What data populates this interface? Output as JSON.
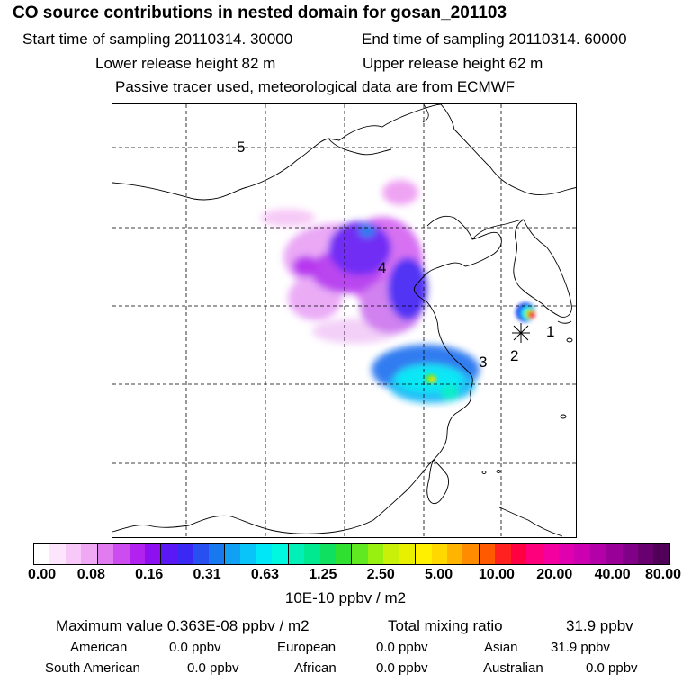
{
  "header": {
    "title": "CO  source contributions in nested domain for gosan_201103",
    "start_label": "Start time of sampling 20110314. 30000",
    "end_label": "End time of sampling 20110314. 60000",
    "lower_label": "Lower release height   82 m",
    "upper_label": "Upper release height   62 m",
    "tracer_label": "Passive tracer used, meteorological data are from ECMWF"
  },
  "map": {
    "region_labels": [
      "1",
      "2",
      "3",
      "4",
      "5"
    ]
  },
  "colorbar": {
    "tick_labels": [
      "0.00",
      "0.08",
      "0.16",
      "0.31",
      "0.63",
      "1.25",
      "2.50",
      "5.00",
      "10.00",
      "20.00",
      "40.00",
      "80.00"
    ],
    "unit": "10E-10 ppbv / m2",
    "colors": [
      "#ffffff",
      "#fde6fd",
      "#f8c8f8",
      "#f0a8f4",
      "#e07cf0",
      "#cc4cef",
      "#b222ee",
      "#8c10f0",
      "#5a18f4",
      "#3a28f4",
      "#2850f0",
      "#1878f0",
      "#10a0f4",
      "#08c4f8",
      "#00e8f8",
      "#00f8e0",
      "#00f0b8",
      "#00e890",
      "#10e060",
      "#30e030",
      "#60e820",
      "#98f010",
      "#c8f008",
      "#e8f000",
      "#fff000",
      "#ffd800",
      "#ffb400",
      "#ff8c00",
      "#ff5a00",
      "#ff2020",
      "#ff0040",
      "#ff007c",
      "#f400a0",
      "#e000b0",
      "#cc00b0",
      "#b400a8",
      "#980098",
      "#800088",
      "#680070",
      "#500058"
    ]
  },
  "stats": {
    "max_label": "Maximum value  0.363E-08 ppbv / m2",
    "total_label": "Total mixing ratio",
    "total_value": "31.9 ppbv"
  },
  "sources": {
    "american_label": "American",
    "american_value": "0.0 ppbv",
    "european_label": "European",
    "european_value": "0.0 ppbv",
    "asian_label": "Asian",
    "asian_value": "31.9 ppbv",
    "south_american_label": "South American",
    "south_american_value": "0.0 ppbv",
    "african_label": "African",
    "african_value": "0.0 ppbv",
    "australian_label": "Australian",
    "australian_value": "0.0 ppbv"
  }
}
